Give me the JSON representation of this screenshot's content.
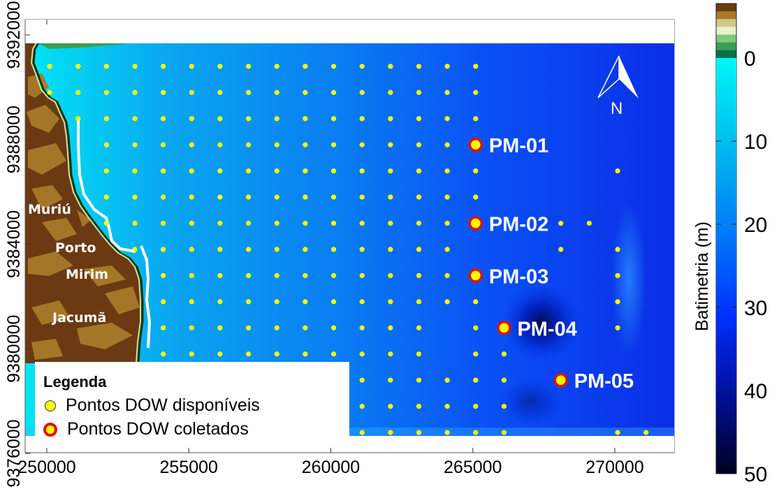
{
  "chart_data": {
    "type": "scatter",
    "title": "",
    "xlabel": "",
    "ylabel": "",
    "xlim": [
      249600,
      272100
    ],
    "ylim": [
      9375600,
      9392600
    ],
    "x_ticks": [
      {
        "value": 250000,
        "label": "250000"
      },
      {
        "value": 255000,
        "label": "255000"
      },
      {
        "value": 260000,
        "label": "260000"
      },
      {
        "value": 265000,
        "label": "265000"
      },
      {
        "value": 270000,
        "label": "270000"
      }
    ],
    "y_ticks": [
      {
        "value": 9376000,
        "label": "9376000"
      },
      {
        "value": 9380000,
        "label": "9380000"
      },
      {
        "value": 9384000,
        "label": "9384000"
      },
      {
        "value": 9388000,
        "label": "9388000"
      },
      {
        "value": 9392000,
        "label": "9392000"
      }
    ],
    "grid": false,
    "grid_origin": {
      "x": 250100,
      "y": 9390800
    },
    "grid_step": 1000,
    "series": [
      {
        "name": "Pontos DOW disponíveis",
        "color": "#ffff00",
        "rows": [
          {
            "row": 0,
            "cols": [
              0,
              1,
              2,
              3,
              4,
              5,
              6,
              7,
              8,
              9,
              10,
              11,
              12,
              13,
              14,
              15
            ]
          },
          {
            "row": 1,
            "cols": [
              0,
              1,
              2,
              3,
              4,
              5,
              6,
              7,
              8,
              9,
              10,
              11,
              12,
              13,
              14,
              15
            ]
          },
          {
            "row": 2,
            "cols": [
              1,
              2,
              3,
              4,
              5,
              6,
              7,
              8,
              9,
              10,
              11,
              12,
              13,
              14,
              15
            ]
          },
          {
            "row": 3,
            "cols": [
              2,
              3,
              4,
              5,
              6,
              7,
              8,
              9,
              10,
              11,
              12,
              13,
              14
            ]
          },
          {
            "row": 4,
            "cols": [
              2,
              3,
              4,
              5,
              6,
              7,
              8,
              9,
              10,
              11,
              12,
              13,
              14,
              15,
              20
            ]
          },
          {
            "row": 5,
            "cols": [
              2,
              3,
              4,
              5,
              6,
              7,
              8,
              9,
              10,
              11,
              12,
              13,
              14,
              15
            ]
          },
          {
            "row": 6,
            "cols": [
              2,
              3,
              4,
              5,
              6,
              7,
              8,
              9,
              10,
              11,
              12,
              13,
              14,
              18,
              19
            ]
          },
          {
            "row": 7,
            "cols": [
              3,
              4,
              5,
              6,
              7,
              8,
              9,
              10,
              11,
              12,
              13,
              14,
              18,
              20
            ]
          },
          {
            "row": 8,
            "cols": [
              4,
              5,
              6,
              7,
              8,
              9,
              10,
              11,
              12,
              13,
              14,
              20
            ]
          },
          {
            "row": 9,
            "cols": [
              4,
              5,
              6,
              7,
              8,
              9,
              10,
              11,
              12,
              13,
              14,
              15,
              20
            ]
          },
          {
            "row": 10,
            "cols": [
              4,
              5,
              6,
              7,
              8,
              9,
              10,
              11,
              12,
              13,
              15,
              20
            ]
          },
          {
            "row": 11,
            "cols": [
              4,
              5,
              6,
              7,
              8,
              9,
              10,
              11,
              12,
              13,
              15,
              16
            ]
          },
          {
            "row": 12,
            "cols": [
              11,
              12,
              13,
              14,
              15,
              16
            ]
          },
          {
            "row": 13,
            "cols": [
              11,
              12,
              13,
              14,
              15,
              16
            ]
          },
          {
            "row": 14,
            "cols": [
              11,
              12,
              13,
              14,
              15,
              16,
              20,
              21
            ]
          }
        ]
      },
      {
        "name": "Pontos DOW coletados",
        "color": "#ffff00",
        "edge": "#e01010",
        "points": [
          {
            "label": "PM-01",
            "row": 3,
            "col": 15
          },
          {
            "label": "PM-02",
            "row": 6,
            "col": 15
          },
          {
            "label": "PM-03",
            "row": 8,
            "col": 15
          },
          {
            "label": "PM-04",
            "row": 10,
            "col": 16
          },
          {
            "label": "PM-05",
            "row": 12,
            "col": 18
          }
        ]
      }
    ],
    "places": [
      {
        "label": "Muriú"
      },
      {
        "label": "Porto"
      },
      {
        "label": "Mirim"
      },
      {
        "label": "Jacumã"
      }
    ],
    "north_arrow": "N",
    "colorbar": {
      "label": "Batimetria (m)",
      "range": [
        -5,
        50
      ],
      "ticks": [
        {
          "value": 0,
          "label": "0"
        },
        {
          "value": 10,
          "label": "10"
        },
        {
          "value": 20,
          "label": "20"
        },
        {
          "value": 30,
          "label": "30"
        },
        {
          "value": 40,
          "label": "40"
        },
        {
          "value": 50,
          "label": "50"
        }
      ],
      "land_colors": [
        "#6b3a12",
        "#a87a2a",
        "#cfc98a",
        "#e8f2c8",
        "#7fc97f",
        "#3aa050",
        "#0a6e4a"
      ],
      "water_colors": [
        "#00f0f0",
        "#00b4f0",
        "#0080ff",
        "#0050ff",
        "#0020e0",
        "#000880",
        "#000030"
      ]
    },
    "legend": {
      "title": "Legenda",
      "position": "bottom-left"
    }
  }
}
